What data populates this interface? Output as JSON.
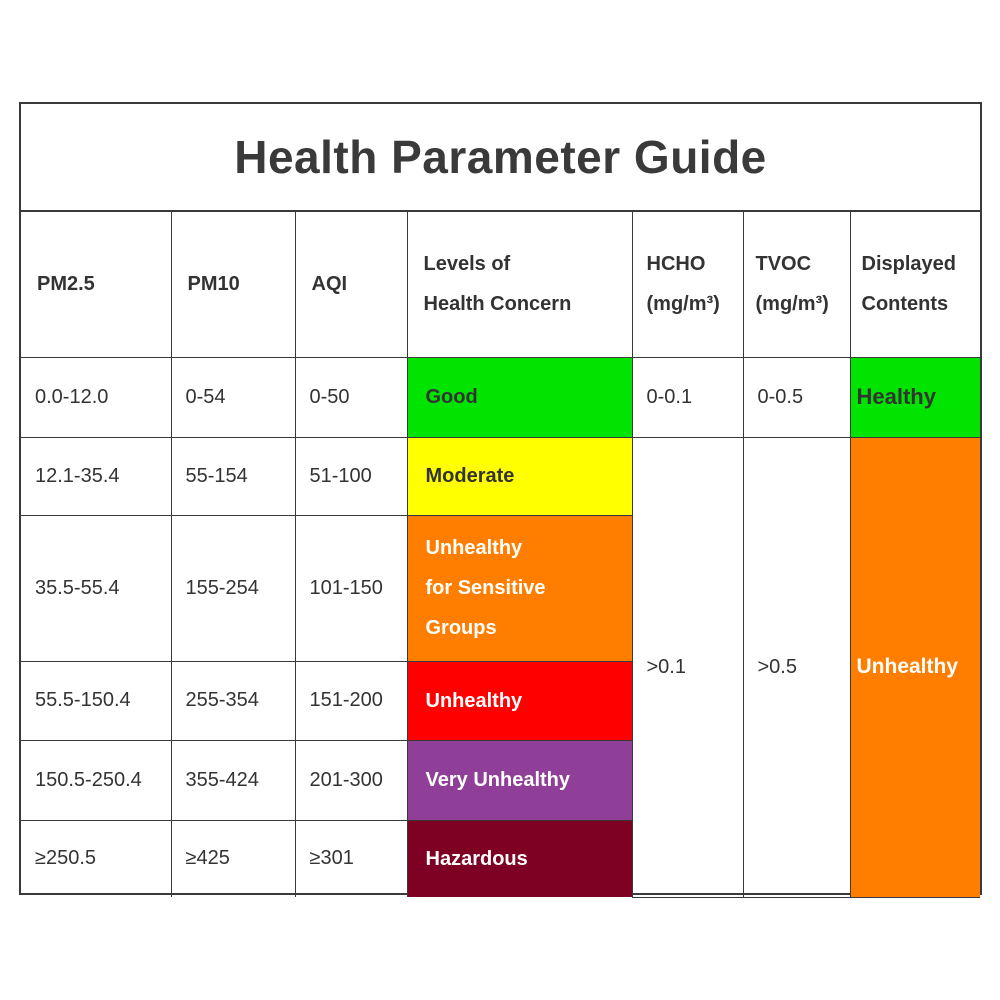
{
  "title": "Health Parameter Guide",
  "headers": {
    "pm25": "PM2.5",
    "pm10": "PM10",
    "aqi": "AQI",
    "levels_line1": "Levels of",
    "levels_line2": "Health Concern",
    "hcho_line1": "HCHO",
    "hcho_line2": "(mg/m³)",
    "tvoc_line1": "TVOC",
    "tvoc_line2": "(mg/m³)",
    "displayed_line1": "Displayed",
    "displayed_line2": "Contents"
  },
  "rows": [
    {
      "pm25": "0.0-12.0",
      "pm10": "0-54",
      "aqi": "0-50",
      "level": [
        "Good"
      ],
      "color": "#00e400"
    },
    {
      "pm25": "12.1-35.4",
      "pm10": "55-154",
      "aqi": "51-100",
      "level": [
        "Moderate"
      ],
      "color": "#ffff00"
    },
    {
      "pm25": "35.5-55.4",
      "pm10": "155-254",
      "aqi": "101-150",
      "level": [
        "Unhealthy",
        "for Sensitive",
        "Groups"
      ],
      "color": "#ff7e00"
    },
    {
      "pm25": "55.5-150.4",
      "pm10": "255-354",
      "aqi": "151-200",
      "level": [
        "Unhealthy"
      ],
      "color": "#ff0000"
    },
    {
      "pm25": "150.5-250.4",
      "pm10": "355-424",
      "aqi": "201-300",
      "level": [
        "Very Unhealthy"
      ],
      "color": "#8f3f97"
    },
    {
      "pm25": "≥250.5",
      "pm10": "≥425",
      "aqi": "≥301",
      "level": [
        "Hazardous"
      ],
      "color": "#7e0023"
    }
  ],
  "hcho": {
    "healthy": "0-0.1",
    "unhealthy": ">0.1"
  },
  "tvoc": {
    "healthy": "0-0.5",
    "unhealthy": ">0.5"
  },
  "displayed": {
    "healthy": "Healthy",
    "unhealthy": "Unhealthy"
  }
}
